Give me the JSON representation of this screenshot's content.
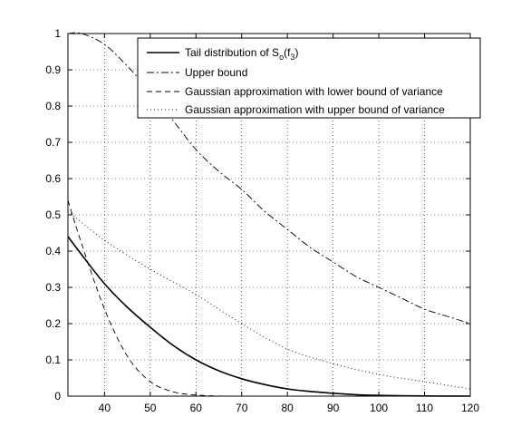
{
  "chart_data": {
    "type": "line",
    "title": "",
    "xlabel": "",
    "ylabel": "",
    "xlim": [
      32,
      120
    ],
    "ylim": [
      0,
      1
    ],
    "grid": true,
    "legend_position": "top-right",
    "x_ticks": [
      40,
      50,
      60,
      70,
      80,
      90,
      100,
      110,
      120
    ],
    "y_ticks": [
      0,
      0.1,
      0.2,
      0.3,
      0.4,
      0.5,
      0.6,
      0.7,
      0.8,
      0.9,
      1
    ],
    "x_tick_labels": [
      "40",
      "50",
      "60",
      "70",
      "80",
      "90",
      "100",
      "110",
      "120"
    ],
    "y_tick_labels": [
      "0",
      "0.1",
      "0.2",
      "0.3",
      "0.4",
      "0.5",
      "0.6",
      "0.7",
      "0.8",
      "0.9",
      "1"
    ],
    "series": [
      {
        "name": "Tail distribution of S_o(f_3)",
        "legend_main": "Tail distribution of S",
        "legend_sub1": "o",
        "legend_mid": "(f",
        "legend_sub2": "3",
        "legend_end": ")",
        "style": "solid",
        "x": [
          32,
          35,
          40,
          45,
          50,
          55,
          60,
          65,
          70,
          75,
          80,
          85,
          90,
          95,
          100,
          110,
          120
        ],
        "y": [
          0.44,
          0.39,
          0.31,
          0.245,
          0.19,
          0.14,
          0.1,
          0.07,
          0.048,
          0.032,
          0.02,
          0.013,
          0.008,
          0.004,
          0.002,
          0.0005,
          0.0
        ]
      },
      {
        "name": "Upper bound",
        "style": "dashdot",
        "x": [
          32,
          35,
          40,
          45,
          50,
          55,
          60,
          65,
          70,
          75,
          80,
          85,
          90,
          95,
          100,
          105,
          110,
          115,
          120
        ],
        "y": [
          1.0,
          1.0,
          0.97,
          0.91,
          0.84,
          0.76,
          0.68,
          0.62,
          0.57,
          0.51,
          0.46,
          0.41,
          0.37,
          0.33,
          0.3,
          0.27,
          0.24,
          0.22,
          0.2
        ]
      },
      {
        "name": "Gaussian approximation with lower bound of variance",
        "style": "dashed",
        "x": [
          32,
          35,
          40,
          45,
          50,
          55,
          60,
          65,
          70
        ],
        "y": [
          0.54,
          0.42,
          0.24,
          0.11,
          0.04,
          0.012,
          0.003,
          0.0005,
          0.0
        ]
      },
      {
        "name": "Gaussian approximation with upper bound of variance",
        "style": "dotted",
        "x": [
          32,
          40,
          50,
          60,
          70,
          80,
          90,
          100,
          110,
          120
        ],
        "y": [
          0.51,
          0.43,
          0.35,
          0.28,
          0.2,
          0.13,
          0.09,
          0.06,
          0.04,
          0.02
        ]
      }
    ]
  }
}
